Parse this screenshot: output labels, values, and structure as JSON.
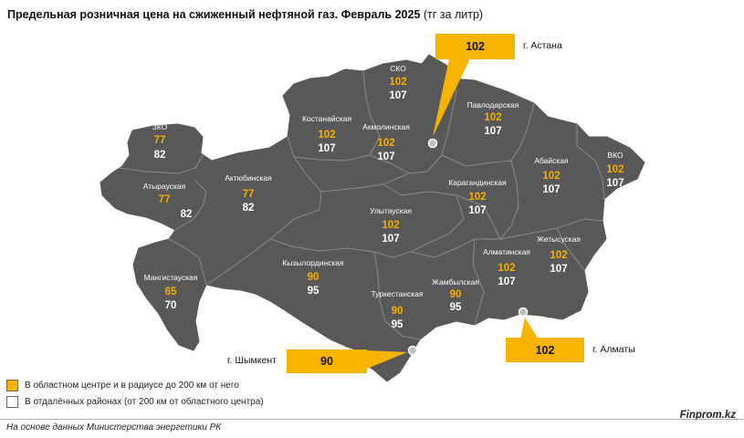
{
  "title": {
    "main": "Предельная розничная цена на сжиженный нефтяной газ. Февраль 2025",
    "unit": "(тг за литр)"
  },
  "colors": {
    "map_fill": "#585858",
    "border": "#8a8a8a",
    "center_price": "#f6b100",
    "remote_price": "#ffffff",
    "callout_bg": "#f6b400"
  },
  "regions": [
    {
      "name": "ЗКО",
      "center": "77",
      "remote": "82"
    },
    {
      "name": "Атырауская",
      "center": "77",
      "remote": "82"
    },
    {
      "name": "Актюбинская",
      "center": "77",
      "remote": "82"
    },
    {
      "name": "Мангистауская",
      "center": "65",
      "remote": "70"
    },
    {
      "name": "Костанайская",
      "center": "102",
      "remote": "107"
    },
    {
      "name": "СКО",
      "center": "102",
      "remote": "107"
    },
    {
      "name": "Акмолинская",
      "center": "102",
      "remote": "107"
    },
    {
      "name": "Павлодарская",
      "center": "102",
      "remote": "107"
    },
    {
      "name": "Абайская",
      "center": "102",
      "remote": "107"
    },
    {
      "name": "ВКО",
      "center": "102",
      "remote": "107"
    },
    {
      "name": "Карагандинская",
      "center": "102",
      "remote": "107"
    },
    {
      "name": "Улытауская",
      "center": "102",
      "remote": "107"
    },
    {
      "name": "Кызылординская",
      "center": "90",
      "remote": "95"
    },
    {
      "name": "Туркестанская",
      "center": "90",
      "remote": "95"
    },
    {
      "name": "Жамбылская",
      "center": "90",
      "remote": "95"
    },
    {
      "name": "Алматинская",
      "center": "102",
      "remote": "107"
    },
    {
      "name": "Жетысуская",
      "center": "102",
      "remote": "107"
    }
  ],
  "cities": [
    {
      "name": "г. Астана",
      "price": "102"
    },
    {
      "name": "г. Шымкент",
      "price": "90"
    },
    {
      "name": "г. Алматы",
      "price": "102"
    }
  ],
  "legend": [
    {
      "label": "В областном центре и в радиусе до 200 км от него",
      "color": "#f6b400"
    },
    {
      "label": "В отдалённых районах (от 200 км от областного центра)",
      "color": "#ffffff"
    }
  ],
  "source": "На основе данных Министерства энергетики РК",
  "brand": "Finprom.kz"
}
